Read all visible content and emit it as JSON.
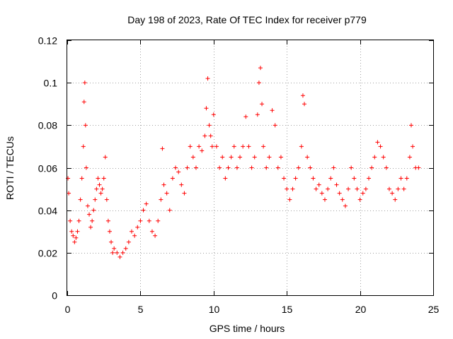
{
  "chart_data": {
    "type": "scatter",
    "title": "Day 198 of 2023, Rate Of TEC Index for receiver p779",
    "xlabel": "GPS time / hours",
    "ylabel": "ROTI / TECUs",
    "xlim": [
      0,
      25
    ],
    "ylim": [
      0,
      0.12
    ],
    "x_ticks": [
      "0",
      "5",
      "10",
      "15",
      "20",
      "25"
    ],
    "x_tick_values": [
      0,
      5,
      10,
      15,
      20,
      25
    ],
    "y_ticks": [
      "0",
      "0.02",
      "0.04",
      "0.06",
      "0.08",
      "0.1",
      "0.12"
    ],
    "y_tick_values": [
      0,
      0.02,
      0.04,
      0.06,
      0.08,
      0.1,
      0.12
    ],
    "grid": true,
    "marker": "+",
    "color": "#ff0000",
    "series": [
      {
        "name": "ROTI",
        "x": [
          0.05,
          0.1,
          0.2,
          0.3,
          0.4,
          0.5,
          0.6,
          0.7,
          0.8,
          0.9,
          1.0,
          1.1,
          1.15,
          1.2,
          1.25,
          1.3,
          1.4,
          1.5,
          1.6,
          1.7,
          1.8,
          1.9,
          2.0,
          2.1,
          2.2,
          2.3,
          2.4,
          2.5,
          2.6,
          2.7,
          2.8,
          2.9,
          3.0,
          3.1,
          3.2,
          3.4,
          3.6,
          3.8,
          4.0,
          4.2,
          4.4,
          4.6,
          4.8,
          5.0,
          5.2,
          5.4,
          5.6,
          5.8,
          6.0,
          6.2,
          6.4,
          6.5,
          6.6,
          6.8,
          7.0,
          7.2,
          7.4,
          7.6,
          7.8,
          8.0,
          8.2,
          8.4,
          8.6,
          8.8,
          9.0,
          9.2,
          9.4,
          9.5,
          9.6,
          9.7,
          9.8,
          9.9,
          10.0,
          10.2,
          10.4,
          10.6,
          10.8,
          11.0,
          11.2,
          11.4,
          11.6,
          11.8,
          12.0,
          12.2,
          12.4,
          12.6,
          12.8,
          13.0,
          13.1,
          13.2,
          13.3,
          13.4,
          13.6,
          13.8,
          14.0,
          14.2,
          14.4,
          14.6,
          14.8,
          15.0,
          15.2,
          15.4,
          15.6,
          15.8,
          16.0,
          16.1,
          16.2,
          16.4,
          16.6,
          16.8,
          17.0,
          17.2,
          17.4,
          17.6,
          17.8,
          18.0,
          18.2,
          18.4,
          18.6,
          18.8,
          19.0,
          19.2,
          19.4,
          19.6,
          19.8,
          20.0,
          20.2,
          20.4,
          20.6,
          20.8,
          21.0,
          21.2,
          21.4,
          21.6,
          21.8,
          22.0,
          22.2,
          22.4,
          22.6,
          22.8,
          23.0,
          23.2,
          23.4,
          23.5,
          23.6,
          23.8,
          24.0
        ],
        "y": [
          0.055,
          0.048,
          0.035,
          0.03,
          0.028,
          0.025,
          0.027,
          0.03,
          0.035,
          0.045,
          0.055,
          0.07,
          0.091,
          0.1,
          0.08,
          0.06,
          0.042,
          0.038,
          0.032,
          0.035,
          0.04,
          0.045,
          0.05,
          0.055,
          0.052,
          0.048,
          0.05,
          0.055,
          0.065,
          0.045,
          0.035,
          0.03,
          0.025,
          0.02,
          0.022,
          0.02,
          0.018,
          0.02,
          0.022,
          0.025,
          0.03,
          0.028,
          0.032,
          0.035,
          0.04,
          0.043,
          0.035,
          0.03,
          0.028,
          0.035,
          0.045,
          0.069,
          0.052,
          0.048,
          0.04,
          0.055,
          0.06,
          0.058,
          0.052,
          0.048,
          0.06,
          0.07,
          0.065,
          0.06,
          0.07,
          0.068,
          0.075,
          0.088,
          0.102,
          0.08,
          0.075,
          0.07,
          0.085,
          0.07,
          0.06,
          0.065,
          0.055,
          0.06,
          0.065,
          0.07,
          0.06,
          0.065,
          0.07,
          0.084,
          0.07,
          0.06,
          0.065,
          0.085,
          0.1,
          0.107,
          0.09,
          0.07,
          0.06,
          0.065,
          0.087,
          0.08,
          0.06,
          0.065,
          0.055,
          0.05,
          0.045,
          0.05,
          0.055,
          0.06,
          0.07,
          0.094,
          0.09,
          0.065,
          0.06,
          0.055,
          0.05,
          0.052,
          0.048,
          0.045,
          0.05,
          0.055,
          0.06,
          0.052,
          0.048,
          0.045,
          0.042,
          0.05,
          0.06,
          0.055,
          0.05,
          0.045,
          0.048,
          0.05,
          0.055,
          0.06,
          0.065,
          0.072,
          0.07,
          0.065,
          0.06,
          0.05,
          0.048,
          0.045,
          0.05,
          0.055,
          0.05,
          0.055,
          0.065,
          0.08,
          0.07,
          0.06,
          0.06
        ]
      }
    ]
  }
}
